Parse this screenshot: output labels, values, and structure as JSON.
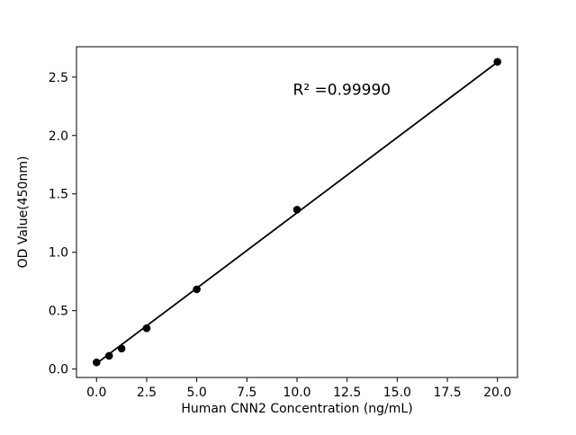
{
  "chart_data": {
    "type": "scatter",
    "title": "",
    "xlabel": "Human CNN2 Concentration (ng/mL)",
    "ylabel": "OD Value(450nm)",
    "annotation": {
      "text": "R² =0.99990",
      "x": 9.8,
      "y": 2.35
    },
    "points": [
      [
        0,
        0.057
      ],
      [
        0.625,
        0.113
      ],
      [
        1.25,
        0.176
      ],
      [
        2.5,
        0.35
      ],
      [
        5,
        0.683
      ],
      [
        10,
        1.365
      ],
      [
        20,
        2.631
      ]
    ],
    "fit_line": {
      "slope": 0.129,
      "intercept": 0.048,
      "x_start": 0,
      "x_end": 20
    },
    "xlim": [
      -1,
      21
    ],
    "ylim": [
      -0.072,
      2.76
    ],
    "xticks": {
      "values": [
        0,
        2.5,
        5,
        7.5,
        10,
        12.5,
        15,
        17.5,
        20
      ],
      "labels": [
        "0.0",
        "2.5",
        "5.0",
        "7.5",
        "10.0",
        "12.5",
        "15.0",
        "17.5",
        "20.0"
      ]
    },
    "yticks": {
      "values": [
        0,
        0.5,
        1,
        1.5,
        2,
        2.5
      ],
      "labels": [
        "0.0",
        "0.5",
        "1.0",
        "1.5",
        "2.0",
        "2.5"
      ]
    },
    "legend": null,
    "grid": false,
    "marker_color": "#000000",
    "line_color": "#000000",
    "background_color": "#ffffff"
  }
}
